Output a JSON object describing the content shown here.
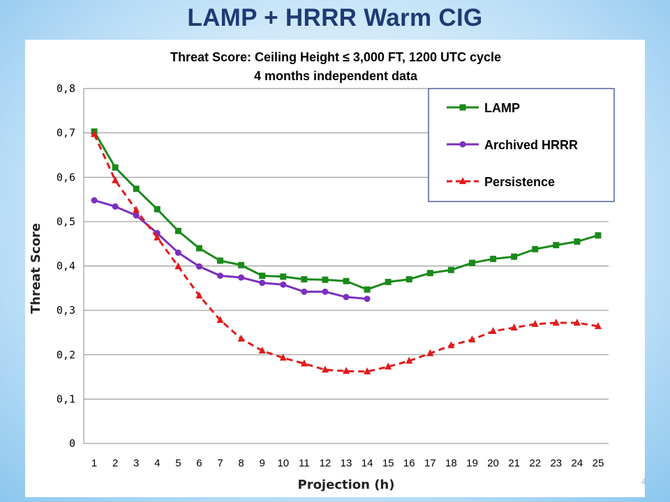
{
  "slide": {
    "title": "LAMP + HRRR Warm CIG",
    "page_number": "4"
  },
  "chart_data": {
    "type": "line",
    "title": "Threat Score: Ceiling Height ≤ 3,000 FT, 1200 UTC cycle",
    "subtitle": "4 months independent data",
    "xlabel": "Projection (h)",
    "ylabel": "Threat Score",
    "x": [
      1,
      2,
      3,
      4,
      5,
      6,
      7,
      8,
      9,
      10,
      11,
      12,
      13,
      14,
      15,
      16,
      17,
      18,
      19,
      20,
      21,
      22,
      23,
      24,
      25
    ],
    "ylim": [
      0,
      0.8
    ],
    "yticks": [
      0,
      0.1,
      0.2,
      0.3,
      0.4,
      0.5,
      0.6,
      0.7,
      0.8
    ],
    "ytick_labels": [
      "0",
      "0,1",
      "0,2",
      "0,3",
      "0,4",
      "0,5",
      "0,6",
      "0,7",
      "0,8"
    ],
    "grid": "horizontal",
    "legend_position": "top-right",
    "series": [
      {
        "name": "LAMP",
        "color": "#1a8a1a",
        "marker": "square",
        "line_style": "solid",
        "values": [
          0.703,
          0.622,
          0.574,
          0.528,
          0.479,
          0.44,
          0.412,
          0.402,
          0.378,
          0.376,
          0.37,
          0.369,
          0.366,
          0.347,
          0.364,
          0.37,
          0.384,
          0.391,
          0.407,
          0.416,
          0.421,
          0.438,
          0.447,
          0.455,
          0.469
        ]
      },
      {
        "name": "Archived HRRR",
        "color": "#7b2fbe",
        "marker": "circle",
        "line_style": "solid",
        "values": [
          0.548,
          0.534,
          0.514,
          0.474,
          0.43,
          0.399,
          0.378,
          0.374,
          0.362,
          0.358,
          0.342,
          0.342,
          0.33,
          0.326,
          null,
          null,
          null,
          null,
          null,
          null,
          null,
          null,
          null,
          null,
          null
        ]
      },
      {
        "name": "Persistence",
        "color": "#e31a1a",
        "marker": "triangle",
        "line_style": "dashed",
        "values": [
          0.697,
          0.593,
          0.526,
          0.464,
          0.399,
          0.333,
          0.278,
          0.236,
          0.209,
          0.193,
          0.18,
          0.166,
          0.163,
          0.162,
          0.173,
          0.186,
          0.203,
          0.221,
          0.234,
          0.253,
          0.261,
          0.269,
          0.272,
          0.272,
          0.264
        ]
      }
    ]
  }
}
